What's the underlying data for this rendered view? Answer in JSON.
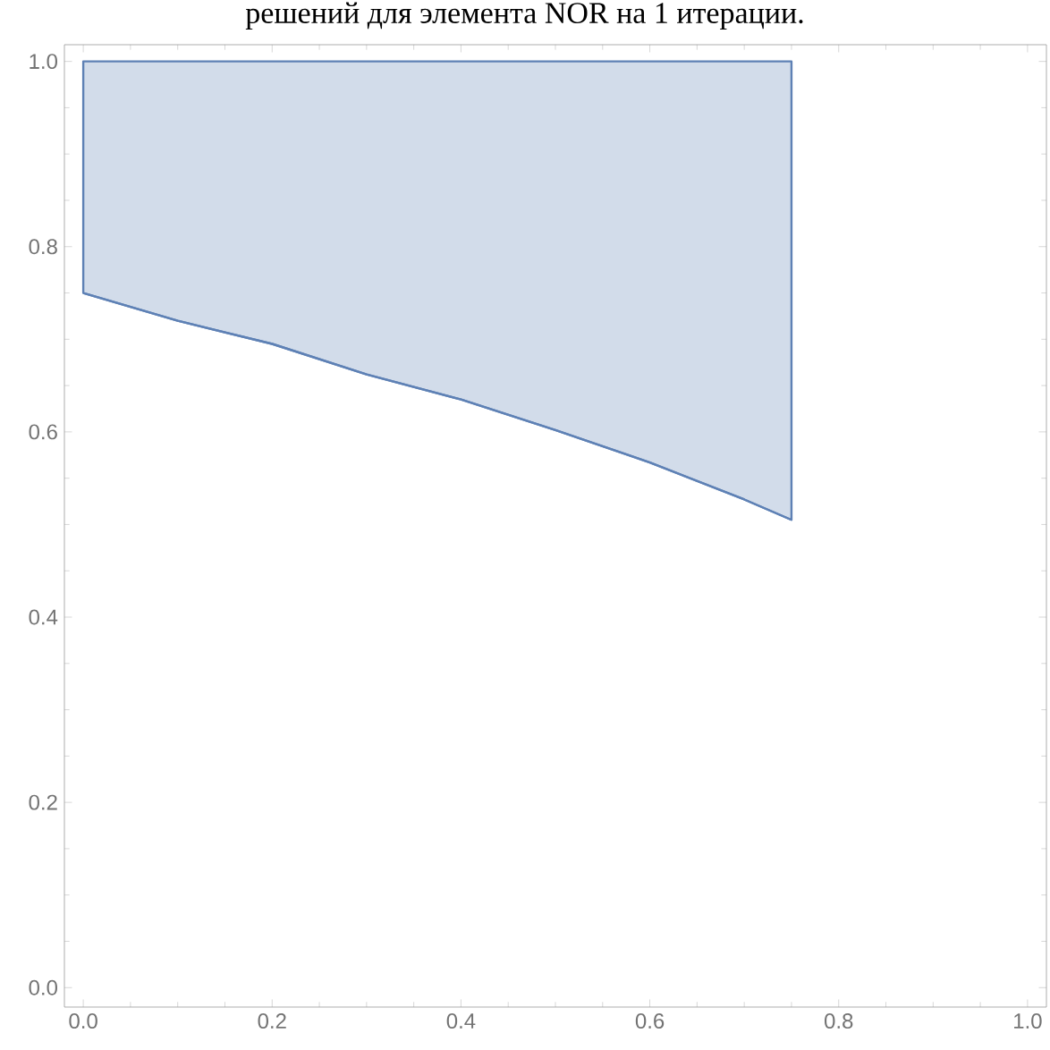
{
  "chart_data": {
    "type": "line",
    "title": "решений для элемента NOR на 1 итерации.",
    "xlim": [
      -0.02,
      1.02
    ],
    "ylim": [
      -0.021,
      1.018
    ],
    "xticks": [
      {
        "value": 0,
        "label": "0.0"
      },
      0.2,
      0.4,
      0.6,
      0.8,
      {
        "value": 1,
        "label": "1.0"
      }
    ],
    "yticks": [
      {
        "value": 0,
        "label": "0.0"
      },
      0.2,
      0.4,
      0.6,
      0.8,
      {
        "value": 1,
        "label": "1.0"
      }
    ],
    "grid": false,
    "marker": "none",
    "line_style": "solid",
    "series": [
      {
        "color": "#5e81b5",
        "x": [
          0,
          0.1,
          0.2,
          0.3,
          0.4,
          0.5,
          0.6,
          0.7,
          0.75
        ],
        "values": [
          0.75,
          0.72,
          0.695,
          0.662,
          0.635,
          0.602,
          0.567,
          0.527,
          0.505
        ],
        "lower": [
          0.75,
          0.72,
          0.695,
          0.662,
          0.635,
          0.602,
          0.567,
          0.527,
          0.505
        ],
        "upper": [
          1,
          1,
          1,
          1,
          1,
          1,
          1,
          1,
          1
        ]
      }
    ]
  }
}
